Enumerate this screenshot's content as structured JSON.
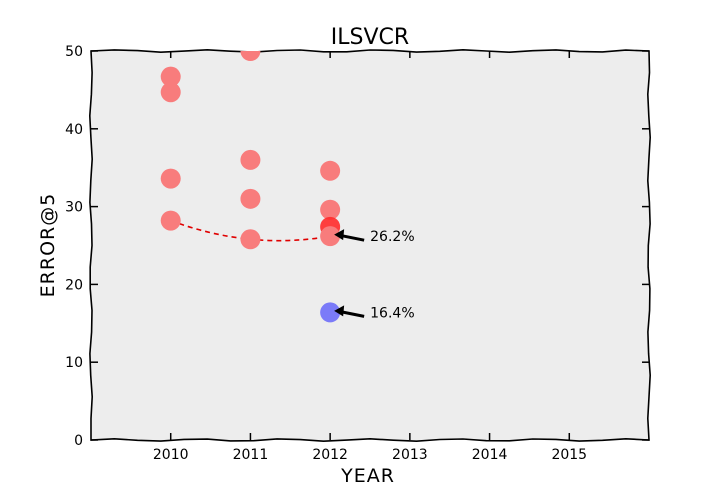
{
  "chart_data": {
    "type": "scatter",
    "title": "ILSVCR",
    "xlabel": "YEAR",
    "ylabel": "ERROR@5",
    "xlim": [
      2009,
      2016
    ],
    "ylim": [
      0,
      50
    ],
    "xticks": [
      "2010",
      "2011",
      "2012",
      "2013",
      "2014",
      "2015"
    ],
    "yticks": [
      "0",
      "10",
      "20",
      "30",
      "40",
      "50"
    ],
    "grid": false,
    "colors": {
      "entries": "#f87c7c",
      "highlight": "#ff2a2a",
      "best": "#7b7bf8",
      "background": "#ededed",
      "trend": "#e00000"
    },
    "series": [
      {
        "points": [
          {
            "x": 2010,
            "y": 46.7
          },
          {
            "x": 2010,
            "y": 44.7
          },
          {
            "x": 2010,
            "y": 33.6
          },
          {
            "x": 2010,
            "y": 28.2
          },
          {
            "x": 2011,
            "y": 50.0
          },
          {
            "x": 2011,
            "y": 36.0
          },
          {
            "x": 2011,
            "y": 31.0
          },
          {
            "x": 2011,
            "y": 25.8
          },
          {
            "x": 2012,
            "y": 34.6
          },
          {
            "x": 2012,
            "y": 29.6
          },
          {
            "x": 2012,
            "y": 27.4
          },
          {
            "x": 2012,
            "y": 26.2
          }
        ]
      },
      {
        "points": [
          {
            "x": 2012,
            "y": 16.4
          }
        ]
      }
    ],
    "trend_line": [
      {
        "x": 2010,
        "y": 28.2
      },
      {
        "x": 2011,
        "y": 25.8
      },
      {
        "x": 2012,
        "y": 26.2
      }
    ],
    "annotations": [
      {
        "text": "26.2%",
        "x": 2012,
        "y": 26.2
      },
      {
        "text": "16.4%",
        "x": 2012,
        "y": 16.4
      }
    ]
  }
}
